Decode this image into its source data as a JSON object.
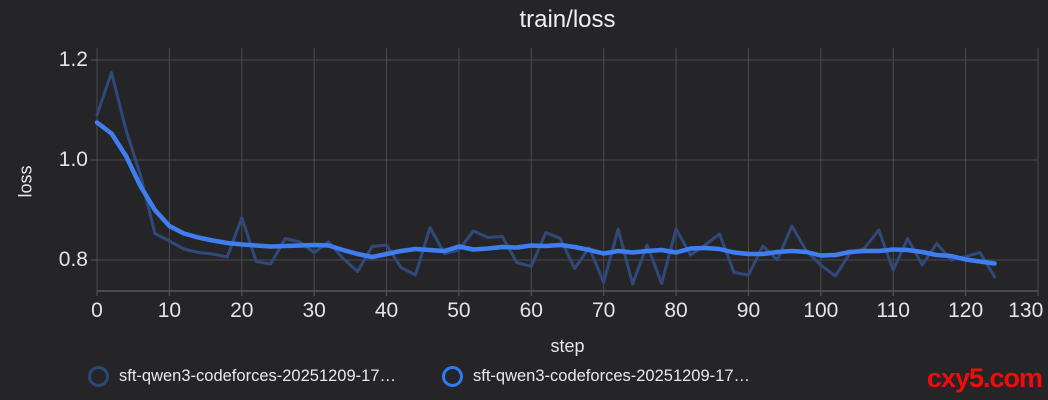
{
  "title": "train/loss",
  "axes": {
    "x": {
      "label": "step",
      "ticks": [
        0,
        10,
        20,
        30,
        40,
        50,
        60,
        70,
        80,
        90,
        100,
        110,
        120,
        130
      ]
    },
    "y": {
      "label": "loss",
      "ticks": [
        1.2,
        1.0,
        0.8
      ],
      "tick_labels": [
        "1.2",
        "1.0",
        "0.8"
      ]
    }
  },
  "legend": [
    {
      "label": "sft-qwen3-codeforces-20251209-17…",
      "color": "#2b4976"
    },
    {
      "label": "sft-qwen3-codeforces-20251209-17…",
      "color": "#2e7cf2"
    }
  ],
  "watermark": "cxy5.com",
  "colors": {
    "background": "#252528",
    "gridline": "#4b4b51",
    "axis_line": "#57575d",
    "text": "#ededee",
    "raw_line": "#30497a",
    "smoothed_line": "#3e7ef0",
    "watermark_red": "#f50a0a"
  },
  "chart_data": {
    "type": "line",
    "title": "train/loss",
    "xlabel": "step",
    "ylabel": "loss",
    "xlim": [
      0,
      130
    ],
    "ylim": [
      0.738,
      1.224
    ],
    "grid": true,
    "legend_position": "bottom",
    "x": [
      0,
      2,
      4,
      6,
      8,
      10,
      12,
      14,
      16,
      18,
      20,
      22,
      24,
      26,
      28,
      30,
      32,
      34,
      36,
      38,
      40,
      42,
      44,
      46,
      48,
      50,
      52,
      54,
      56,
      58,
      60,
      62,
      64,
      66,
      68,
      70,
      72,
      74,
      76,
      78,
      80,
      82,
      84,
      86,
      88,
      90,
      92,
      94,
      96,
      98,
      100,
      102,
      104,
      106,
      108,
      110,
      112,
      114,
      116,
      118,
      120,
      122,
      124
    ],
    "series": [
      {
        "name": "sft-qwen3-codeforces-20251209-17… (raw)",
        "color": "#30497a",
        "stroke_width": 3,
        "values": [
          1.09,
          1.175,
          1.06,
          0.97,
          0.853,
          0.838,
          0.822,
          0.815,
          0.812,
          0.806,
          0.885,
          0.797,
          0.792,
          0.843,
          0.836,
          0.815,
          0.836,
          0.803,
          0.777,
          0.827,
          0.83,
          0.785,
          0.77,
          0.865,
          0.813,
          0.82,
          0.858,
          0.845,
          0.847,
          0.795,
          0.787,
          0.855,
          0.843,
          0.783,
          0.825,
          0.755,
          0.862,
          0.752,
          0.83,
          0.753,
          0.862,
          0.81,
          0.83,
          0.852,
          0.775,
          0.77,
          0.828,
          0.8,
          0.868,
          0.818,
          0.79,
          0.768,
          0.813,
          0.823,
          0.86,
          0.78,
          0.843,
          0.79,
          0.833,
          0.8,
          0.807,
          0.815,
          0.766
        ]
      },
      {
        "name": "sft-qwen3-codeforces-20251209-17… (smoothed)",
        "color": "#3e7ef0",
        "stroke_width": 4.5,
        "values": [
          1.075,
          1.053,
          1.008,
          0.948,
          0.9,
          0.868,
          0.853,
          0.845,
          0.839,
          0.834,
          0.831,
          0.829,
          0.827,
          0.828,
          0.829,
          0.83,
          0.829,
          0.82,
          0.812,
          0.806,
          0.812,
          0.818,
          0.822,
          0.82,
          0.818,
          0.827,
          0.821,
          0.823,
          0.826,
          0.825,
          0.829,
          0.828,
          0.83,
          0.826,
          0.82,
          0.813,
          0.818,
          0.815,
          0.818,
          0.82,
          0.815,
          0.823,
          0.824,
          0.822,
          0.815,
          0.812,
          0.812,
          0.816,
          0.818,
          0.816,
          0.809,
          0.81,
          0.816,
          0.818,
          0.818,
          0.821,
          0.82,
          0.816,
          0.81,
          0.808,
          0.801,
          0.797,
          0.793
        ]
      }
    ]
  }
}
